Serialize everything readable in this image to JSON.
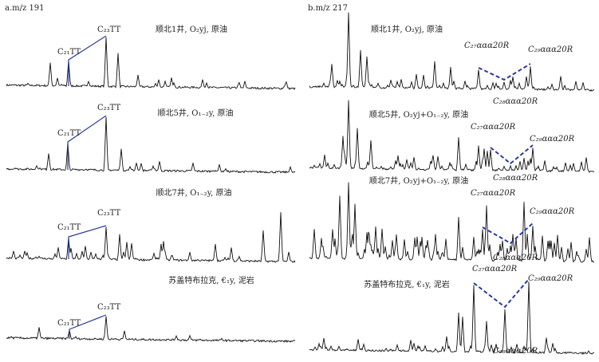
{
  "panel_a": {
    "label": "a.m/z 191",
    "rows": [
      {
        "title": "顺北1井, O₂yj, 原油",
        "peak_labels": [
          "C₂₁TT",
          "C₂₃TT"
        ]
      },
      {
        "title": "顺北5井, O₁₋₂y, 原油",
        "peak_labels": [
          "C₂₁TT",
          "C₂₃TT"
        ]
      },
      {
        "title": "顺北7井, O₁₋₂y, 原油",
        "peak_labels": [
          "C₂₁TT",
          "C₂₃TT"
        ]
      },
      {
        "title": "苏盖特布拉克, €₁y, 泥岩",
        "peak_labels": [
          "C₂₁TT",
          "C₂₃TT"
        ]
      }
    ]
  },
  "panel_b": {
    "label": "b.m/z 217",
    "rows": [
      {
        "title": "顺北1井, O₂yj, 原油",
        "peak_labels": [
          "C₂₇ααα20R",
          "C₂₈ααα20R",
          "C₂₉ααα20R"
        ]
      },
      {
        "title": "顺北5井, O₂yj+O₁₋₂y, 原油",
        "peak_labels": [
          "C₂₇ααα20R",
          "C₂₈ααα20R",
          "C₂₉ααα20R"
        ]
      },
      {
        "title": "顺北7井, O₂yj+O₁₋₂y, 原油",
        "peak_labels": [
          "C₂₇ααα20R",
          "C₂₈ααα20R",
          "C₂₉ααα20R"
        ]
      },
      {
        "title": "苏盖特布拉克, €₁y, 泥岩",
        "peak_labels": [
          "C₂₇ααα20R",
          "C₂₈ααα20R",
          "C₂₉ααα20R"
        ]
      }
    ]
  }
}
